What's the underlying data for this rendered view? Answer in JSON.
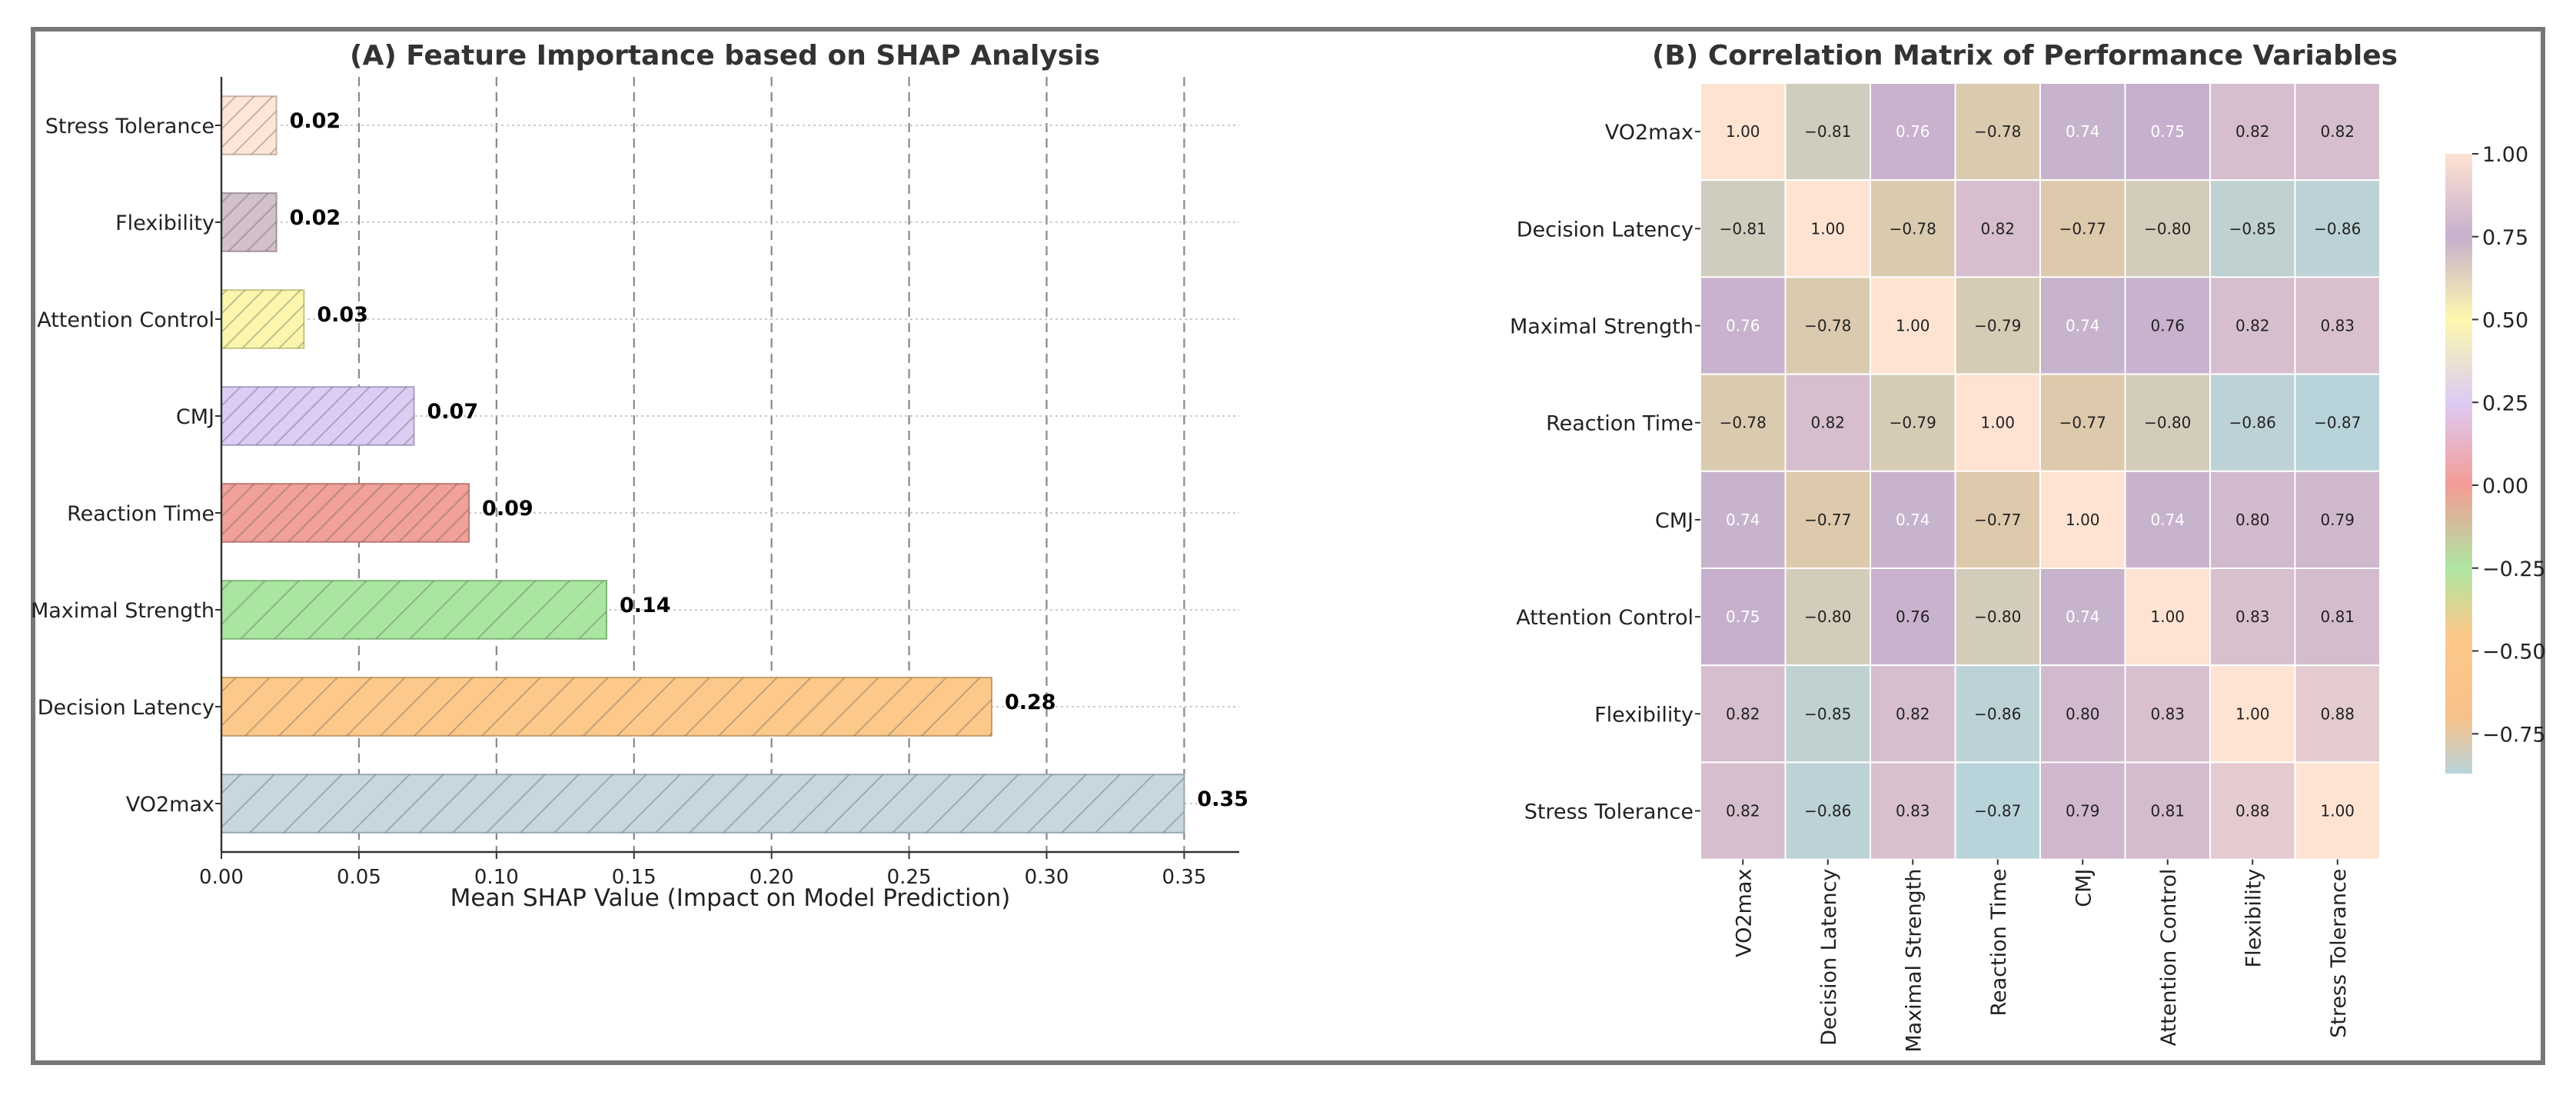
{
  "chart_data": [
    {
      "type": "bar",
      "orientation": "horizontal",
      "title": "(A) Feature Importance based on SHAP Analysis",
      "xlabel": "Mean SHAP Value (Impact on Model Prediction)",
      "ylabel": "",
      "xlim": [
        0,
        0.37
      ],
      "xticks": [
        0.0,
        0.05,
        0.1,
        0.15,
        0.2,
        0.25,
        0.3,
        0.35
      ],
      "xtick_labels": [
        "0.00",
        "0.05",
        "0.10",
        "0.15",
        "0.20",
        "0.25",
        "0.30",
        "0.35"
      ],
      "grid": true,
      "categories": [
        "VO2max",
        "Decision Latency",
        "Maximal Strength",
        "Reaction Time",
        "CMJ",
        "Attention Control",
        "Flexibility",
        "Stress Tolerance"
      ],
      "values": [
        0.35,
        0.28,
        0.14,
        0.09,
        0.07,
        0.03,
        0.02,
        0.02
      ],
      "value_labels": [
        "0.35",
        "0.28",
        "0.14",
        "0.09",
        "0.07",
        "0.03",
        "0.02",
        "0.02"
      ],
      "colors": [
        "#c6d7df",
        "#fcc98a",
        "#a9e6a0",
        "#f1a09a",
        "#dccdf5",
        "#fbf6ad",
        "#d2c0cb",
        "#fde5d8"
      ],
      "edge_colors": [
        "#9aaab1",
        "#c59d6b",
        "#83b57c",
        "#c07a74",
        "#ab9fc4",
        "#c8c483",
        "#a4939f",
        "#cbb3a6"
      ]
    },
    {
      "type": "heatmap",
      "title": "(B) Correlation Matrix of Performance Variables",
      "rows": [
        "VO2max",
        "Decision Latency",
        "Maximal Strength",
        "Reaction Time",
        "CMJ",
        "Attention Control",
        "Flexibility",
        "Stress Tolerance"
      ],
      "columns": [
        "VO2max",
        "Decision Latency",
        "Maximal Strength",
        "Reaction Time",
        "CMJ",
        "Attention Control",
        "Flexibility",
        "Stress Tolerance"
      ],
      "values": [
        [
          1.0,
          -0.81,
          0.76,
          -0.78,
          0.74,
          0.75,
          0.82,
          0.82
        ],
        [
          -0.81,
          1.0,
          -0.78,
          0.82,
          -0.77,
          -0.8,
          -0.85,
          -0.86
        ],
        [
          0.76,
          -0.78,
          1.0,
          -0.79,
          0.74,
          0.76,
          0.82,
          0.83
        ],
        [
          -0.78,
          0.82,
          -0.79,
          1.0,
          -0.77,
          -0.8,
          -0.86,
          -0.87
        ],
        [
          0.74,
          -0.77,
          0.74,
          -0.77,
          1.0,
          0.74,
          0.8,
          0.79
        ],
        [
          0.75,
          -0.8,
          0.76,
          -0.8,
          0.74,
          1.0,
          0.83,
          0.81
        ],
        [
          0.82,
          -0.85,
          0.82,
          -0.86,
          0.8,
          0.83,
          1.0,
          0.88
        ],
        [
          0.82,
          -0.86,
          0.83,
          -0.87,
          0.79,
          0.81,
          0.88,
          1.0
        ]
      ],
      "value_labels": [
        [
          "1.00",
          "−0.81",
          "0.76",
          "−0.78",
          "0.74",
          "0.75",
          "0.82",
          "0.82"
        ],
        [
          "−0.81",
          "1.00",
          "−0.78",
          "0.82",
          "−0.77",
          "−0.80",
          "−0.85",
          "−0.86"
        ],
        [
          "0.76",
          "−0.78",
          "1.00",
          "−0.79",
          "0.74",
          "0.76",
          "0.82",
          "0.83"
        ],
        [
          "−0.78",
          "0.82",
          "−0.79",
          "1.00",
          "−0.77",
          "−0.80",
          "−0.86",
          "−0.87"
        ],
        [
          "0.74",
          "−0.77",
          "0.74",
          "−0.77",
          "1.00",
          "0.74",
          "0.80",
          "0.79"
        ],
        [
          "0.75",
          "−0.80",
          "0.76",
          "−0.80",
          "0.74",
          "1.00",
          "0.83",
          "0.81"
        ],
        [
          "0.82",
          "−0.85",
          "0.82",
          "−0.86",
          "0.80",
          "0.83",
          "1.00",
          "0.88"
        ],
        [
          "0.82",
          "−0.86",
          "0.83",
          "−0.87",
          "0.79",
          "0.81",
          "0.88",
          "1.00"
        ]
      ],
      "white_text_cells": [
        [
          0,
          2
        ],
        [
          0,
          4
        ],
        [
          0,
          5
        ],
        [
          2,
          0
        ],
        [
          2,
          4
        ],
        [
          4,
          0
        ],
        [
          4,
          2
        ],
        [
          4,
          5
        ],
        [
          5,
          0
        ],
        [
          5,
          4
        ]
      ],
      "colorbar": {
        "range": [
          -0.87,
          1.0
        ],
        "ticks": [
          1.0,
          0.75,
          0.5,
          0.25,
          0.0,
          -0.25,
          -0.5,
          -0.75
        ],
        "tick_labels": [
          "1.00",
          "0.75",
          "0.50",
          "0.25",
          "0.00",
          "−0.25",
          "−0.50",
          "−0.75"
        ],
        "colormap": [
          {
            "v": -0.87,
            "color": "#b9d3db"
          },
          {
            "v": -0.7,
            "color": "#f7c28a"
          },
          {
            "v": -0.45,
            "color": "#fcc98a"
          },
          {
            "v": -0.25,
            "color": "#aee6a2"
          },
          {
            "v": 0.0,
            "color": "#f49c96"
          },
          {
            "v": 0.25,
            "color": "#ddcbf4"
          },
          {
            "v": 0.5,
            "color": "#fcf8ae"
          },
          {
            "v": 0.75,
            "color": "#c6b0cd"
          },
          {
            "v": 1.0,
            "color": "#fee3d2"
          }
        ]
      }
    }
  ]
}
